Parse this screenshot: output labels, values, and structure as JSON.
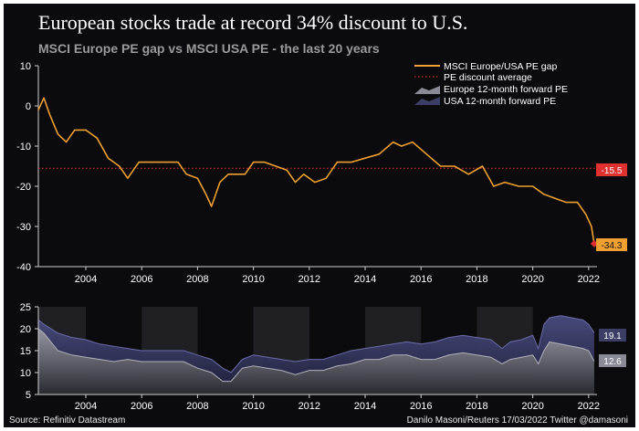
{
  "title": "European stocks trade at record 34% discount to U.S.",
  "subtitle": "MSCI Europe PE gap vs MSCI USA PE - the last 20 years",
  "source": "Source: Refinitiv Datastream",
  "credit": "Danilo Masoni/Reuters 17/03/2022 Twitter @damasoni",
  "colors": {
    "gap": "#f0a030",
    "average": "#e03030",
    "europe": "#8a8a96",
    "usa": "#3c3e66",
    "label_last": "#f0a030",
    "label_avg": "#e03030"
  },
  "chart_data": [
    {
      "type": "line",
      "ylim": [
        -40,
        10
      ],
      "xlim": [
        2002.3,
        2022.3
      ],
      "x_ticks": [
        "2004",
        "2006",
        "2008",
        "2010",
        "2012",
        "2014",
        "2016",
        "2018",
        "2020",
        "2022"
      ],
      "y_ticks": [
        "10",
        "0",
        "-10",
        "-20",
        "-30",
        "-40"
      ],
      "grid": false,
      "legend_position": "top-right",
      "legend": [
        "MSCI Europe/USA PE gap",
        "PE discount average",
        "Europe 12-month forward PE",
        "USA 12-month forward PE"
      ],
      "series": [
        {
          "name": "MSCI Europe/USA PE gap",
          "x": [
            2002.3,
            2002.5,
            2002.7,
            2003.0,
            2003.3,
            2003.6,
            2004.0,
            2004.4,
            2004.8,
            2005.2,
            2005.5,
            2005.9,
            2006.4,
            2006.9,
            2007.3,
            2007.6,
            2008.0,
            2008.3,
            2008.5,
            2008.8,
            2009.1,
            2009.4,
            2009.7,
            2010.0,
            2010.4,
            2010.8,
            2011.2,
            2011.5,
            2011.8,
            2012.2,
            2012.6,
            2013.0,
            2013.5,
            2014.0,
            2014.5,
            2015.0,
            2015.3,
            2015.7,
            2016.2,
            2016.7,
            2017.2,
            2017.7,
            2018.2,
            2018.6,
            2019.0,
            2019.5,
            2020.0,
            2020.4,
            2020.8,
            2021.2,
            2021.6,
            2021.9,
            2022.1,
            2022.2
          ],
          "values": [
            -1,
            2,
            -2,
            -7,
            -9,
            -6,
            -6,
            -8,
            -13,
            -15,
            -18,
            -14,
            -14,
            -14,
            -14,
            -17,
            -18,
            -22,
            -25,
            -19,
            -17,
            -17,
            -17,
            -14,
            -14,
            -15,
            -16,
            -19,
            -17,
            -19,
            -18,
            -14,
            -14,
            -13,
            -12,
            -9,
            -10,
            -9,
            -12,
            -15,
            -15,
            -17,
            -15,
            -20,
            -19,
            -20,
            -20,
            -22,
            -23,
            -24,
            -24,
            -27,
            -30,
            -34.3
          ]
        },
        {
          "name": "PE discount average",
          "values": [
            -15.5
          ]
        }
      ],
      "annotations": [
        "-15.5",
        "-34.3"
      ]
    },
    {
      "type": "area",
      "ylim": [
        5,
        25
      ],
      "xlim": [
        2002.3,
        2022.3
      ],
      "x_ticks": [
        "2004",
        "2006",
        "2008",
        "2010",
        "2012",
        "2014",
        "2016",
        "2018",
        "2020",
        "2022"
      ],
      "y_ticks": [
        "25",
        "20",
        "15",
        "10",
        "5"
      ],
      "series": [
        {
          "name": "USA 12-month forward PE",
          "x": [
            2002.3,
            2002.5,
            2003.0,
            2003.5,
            2004.0,
            2004.5,
            2005.0,
            2005.5,
            2006.0,
            2006.5,
            2007.0,
            2007.5,
            2008.0,
            2008.5,
            2008.9,
            2009.2,
            2009.6,
            2010.0,
            2010.5,
            2011.0,
            2011.5,
            2012.0,
            2012.5,
            2013.0,
            2013.5,
            2014.0,
            2014.5,
            2015.0,
            2015.5,
            2016.0,
            2016.5,
            2017.0,
            2017.5,
            2018.0,
            2018.5,
            2018.9,
            2019.2,
            2019.6,
            2020.0,
            2020.2,
            2020.4,
            2020.6,
            2021.0,
            2021.4,
            2021.8,
            2022.0,
            2022.2
          ],
          "values": [
            22,
            21,
            19,
            18,
            17.5,
            16.5,
            16,
            15.5,
            15,
            15,
            15,
            15,
            14,
            13,
            11,
            10,
            13,
            14,
            13.5,
            13,
            12.5,
            13,
            13,
            14,
            15,
            15.5,
            16,
            16.5,
            17,
            16.5,
            17,
            18,
            18.5,
            18,
            17.5,
            15.5,
            17,
            17.5,
            18.5,
            15.5,
            21,
            22.5,
            23,
            22.5,
            22,
            21,
            19.1
          ]
        },
        {
          "name": "Europe 12-month forward PE",
          "x": [
            2002.3,
            2002.5,
            2003.0,
            2003.5,
            2004.0,
            2004.5,
            2005.0,
            2005.5,
            2006.0,
            2006.5,
            2007.0,
            2007.5,
            2008.0,
            2008.5,
            2008.9,
            2009.2,
            2009.6,
            2010.0,
            2010.5,
            2011.0,
            2011.5,
            2012.0,
            2012.5,
            2013.0,
            2013.5,
            2014.0,
            2014.5,
            2015.0,
            2015.5,
            2016.0,
            2016.5,
            2017.0,
            2017.5,
            2018.0,
            2018.5,
            2018.9,
            2019.2,
            2019.6,
            2020.0,
            2020.2,
            2020.4,
            2020.6,
            2021.0,
            2021.4,
            2021.8,
            2022.0,
            2022.2
          ],
          "values": [
            20,
            19,
            15,
            14,
            13.5,
            13,
            12.5,
            13,
            12.5,
            12.5,
            12.5,
            12.5,
            11,
            10,
            8,
            8,
            11,
            11.5,
            11,
            10.5,
            9.5,
            10.5,
            10.5,
            11.5,
            12,
            13,
            13,
            14,
            14,
            13,
            13,
            14,
            14.5,
            14,
            13.5,
            12,
            13,
            13.5,
            14,
            12,
            15,
            17,
            16.5,
            16,
            15.5,
            15,
            12.6
          ]
        }
      ],
      "annotations": [
        "19.1",
        "12.6"
      ]
    }
  ]
}
